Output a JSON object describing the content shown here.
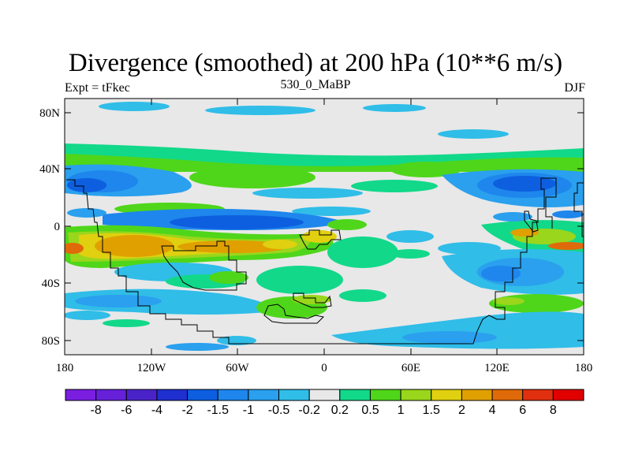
{
  "title": "Divergence (smoothed) at 200 hPa (10**6 m/s)",
  "left_label": "Expt = tFkec",
  "center_label": "530_0_MaBP",
  "right_label": "DJF",
  "lat_ticks": [
    "80N",
    "40N",
    "0",
    "40S",
    "80S"
  ],
  "lon_ticks": [
    "180",
    "120W",
    "60W",
    "0",
    "60E",
    "120E",
    "180"
  ],
  "colorbar": {
    "labels": [
      "-8",
      "-6",
      "-4",
      "-2",
      "-1.5",
      "-1",
      "-0.5",
      "-0.2",
      "0.2",
      "0.5",
      "1",
      "1.5",
      "2",
      "4",
      "6",
      "8"
    ],
    "colors": [
      "#7a1fe0",
      "#6620d8",
      "#4a23c8",
      "#1f2fd0",
      "#0d5fe0",
      "#1e86ec",
      "#2aa0ee",
      "#30bde8",
      "#e8e8e8",
      "#12d88a",
      "#4fd61a",
      "#9ad61c",
      "#e0d010",
      "#e0a000",
      "#e06a0a",
      "#e03010",
      "#e00000"
    ]
  },
  "chart_data": {
    "type": "heatmap",
    "variable": "Divergence (smoothed) at 200 hPa",
    "units": "10**6 m/s",
    "x_range": [
      -180,
      180
    ],
    "y_range": [
      -90,
      90
    ],
    "levels": [
      -8,
      -6,
      -4,
      -2,
      -1.5,
      -1,
      -0.5,
      -0.2,
      0.2,
      0.5,
      1,
      1.5,
      2,
      4,
      6,
      8
    ]
  }
}
